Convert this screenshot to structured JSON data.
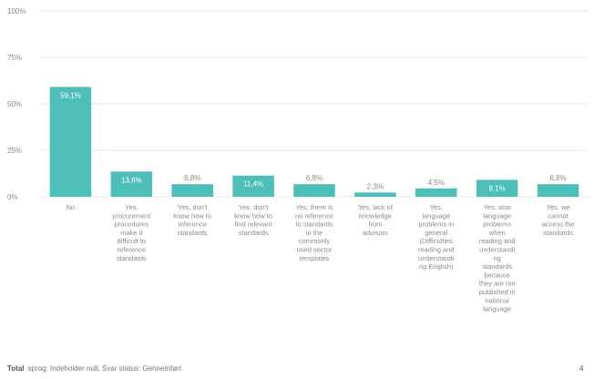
{
  "chart_data": {
    "type": "bar",
    "categories": [
      "No",
      "Yes, procurement procedures make it difficult to reference standards",
      "Yes, don't know how to reference standards",
      "Yes, don't know how to find relevant standards",
      "Yes, there is no reference to standards in the commonly used sector templates",
      "Yes, lack of knowledge from advisors",
      "Yes, language problems in general (Difficulties reading and understanding English)",
      "Yes, also language problems when reading and understanding standards because they are not published in national language",
      "Yes, we cannot access the standards"
    ],
    "category_lines": [
      [
        "No"
      ],
      [
        "Yes,",
        "procurement",
        "procedures",
        "make it",
        "difficult to",
        "reference",
        "standards"
      ],
      [
        "Yes, don't",
        "know how to",
        "reference",
        "standards"
      ],
      [
        "Yes, don't",
        "know how to",
        "find relevant",
        "standards"
      ],
      [
        "Yes, there is",
        "no reference",
        "to standards",
        "in the",
        "commonly",
        "used sector",
        "templates"
      ],
      [
        "Yes, lack of",
        "knowledge",
        "from",
        "advisors"
      ],
      [
        "Yes,",
        "language",
        "problems in",
        "general",
        "(Difficulties",
        "reading and",
        "understandi",
        "ng English)"
      ],
      [
        "Yes, also",
        "language",
        "problems",
        "when",
        "reading and",
        "understandi",
        "ng",
        "standards",
        "because",
        "they are not",
        "published in",
        "national",
        "language"
      ],
      [
        "Yes, we",
        "cannot",
        "access the",
        "standards"
      ]
    ],
    "values": [
      59.1,
      13.6,
      6.8,
      11.4,
      6.8,
      2.3,
      4.5,
      9.1,
      6.8
    ],
    "value_labels": [
      "59,1%",
      "13,6%",
      "6,8%",
      "11,4%",
      "6,8%",
      "2,3%",
      "4,5%",
      "9,1%",
      "6,8%"
    ],
    "ylim": [
      0,
      100
    ],
    "yticks": [
      0,
      25,
      50,
      75,
      100
    ],
    "ytick_labels": [
      "0%",
      "25%",
      "50%",
      "75%",
      "100%"
    ],
    "grid": true,
    "bar_color": "#4dbfb8",
    "grid_color": "#e6e6e6"
  },
  "footer": {
    "total_label": "Total",
    "text": "sprog: Indeholder null, Svar status: Gennemført",
    "page_number": "4"
  }
}
